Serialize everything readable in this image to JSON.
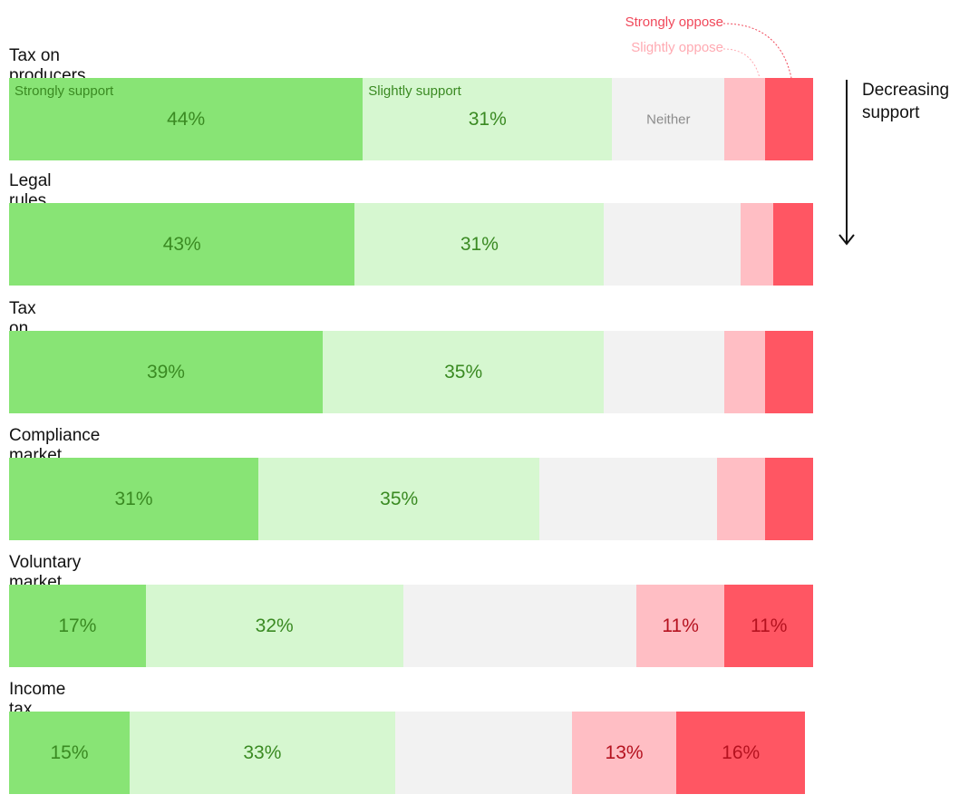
{
  "colors": {
    "strongly_support": "#88e475",
    "slightly_support": "#d6f7d0",
    "neither": "#f2f2f2",
    "slightly_oppose": "#ffbec4",
    "strongly_oppose": "#ff5663",
    "support_text": "#3a8a22",
    "oppose_text": "#b5121f",
    "neither_text": "#8c8c8c",
    "slightly_oppose_legend": "#ffaab2",
    "strongly_oppose_legend": "#f0485a"
  },
  "chart_data": {
    "type": "stacked-bar",
    "orientation": "horizontal",
    "categories": [
      "Tax on producers",
      "Legal rules",
      "Tax on large users",
      "Compliance market",
      "Voluntary market",
      "Income tax"
    ],
    "series": [
      {
        "name": "Strongly support",
        "values": [
          44,
          43,
          39,
          31,
          17,
          15
        ]
      },
      {
        "name": "Slightly support",
        "values": [
          31,
          31,
          35,
          35,
          32,
          33
        ]
      },
      {
        "name": "Neither",
        "values": [
          14,
          17,
          15,
          22,
          29,
          22
        ]
      },
      {
        "name": "Slightly oppose",
        "values": [
          5,
          4,
          5,
          6,
          11,
          13
        ]
      },
      {
        "name": "Strongly oppose",
        "values": [
          6,
          5,
          6,
          6,
          11,
          16
        ]
      }
    ],
    "value_labels": [
      [
        "44%",
        "31%",
        null,
        null,
        null
      ],
      [
        "43%",
        "31%",
        null,
        null,
        null
      ],
      [
        "39%",
        "35%",
        null,
        null,
        null
      ],
      [
        "31%",
        "35%",
        null,
        null,
        null
      ],
      [
        "17%",
        "32%",
        null,
        "11%",
        "11%"
      ],
      [
        "15%",
        "33%",
        null,
        "13%",
        "16%"
      ]
    ],
    "xlim": [
      0,
      100
    ],
    "legend": {
      "strongly_support": "Strongly support",
      "slightly_support": "Slightly support",
      "neither": "Neither",
      "slightly_oppose": "Slightly oppose",
      "strongly_oppose": "Strongly oppose"
    },
    "annotation": "Decreasing support"
  }
}
